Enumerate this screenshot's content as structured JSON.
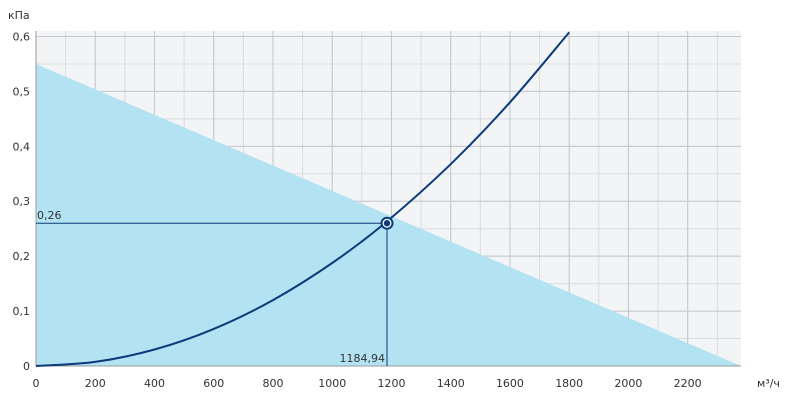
{
  "chart_data": {
    "type": "line",
    "ylabel": "кПа",
    "xlabel": "м³/ч",
    "xlim": [
      0,
      2380
    ],
    "ylim": [
      0,
      0.61
    ],
    "x_ticks": [
      0,
      200,
      400,
      600,
      800,
      1000,
      1200,
      1400,
      1600,
      1800,
      2000,
      2200
    ],
    "x_tick_labels": [
      "0",
      "200",
      "400",
      "600",
      "800",
      "1000",
      "1200",
      "1400",
      "1600",
      "1800",
      "2000",
      "2200"
    ],
    "y_ticks": [
      0,
      0.1,
      0.2,
      0.3,
      0.4,
      0.5,
      0.6
    ],
    "y_tick_labels": [
      "0",
      "0,1",
      "0,2",
      "0,3",
      "0,4",
      "0,5",
      "0,6"
    ],
    "x_minor_step": 100,
    "y_minor_step": 0.05,
    "grid": true,
    "operating_region": {
      "polygon": [
        [
          0,
          0.55
        ],
        [
          2380,
          0
        ],
        [
          0,
          0
        ],
        [
          0,
          0.025
        ],
        [
          410,
          0
        ],
        [
          0,
          0
        ],
        [
          0,
          0.55
        ]
      ],
      "color": "#b3e3f2"
    },
    "series": [
      {
        "color": "#0b3b7a",
        "x": [
          0,
          200,
          400,
          600,
          800,
          1000,
          1184.94,
          1400,
          1600,
          1800
        ],
        "y": [
          0,
          0.0075,
          0.03,
          0.0675,
          0.12,
          0.1875,
          0.2633,
          0.3675,
          0.48,
          0.6075
        ]
      }
    ],
    "operating_point": {
      "x": 1184.94,
      "y": 0.26,
      "x_label": "1184,94",
      "y_label": "0,26"
    }
  },
  "colors": {
    "plot_background": "#f3f4f6",
    "grid": "#d9dbe0",
    "axis": "#9a9a9a",
    "curve": "#0b3b7a",
    "guide_lines": "#0b3b7a"
  }
}
